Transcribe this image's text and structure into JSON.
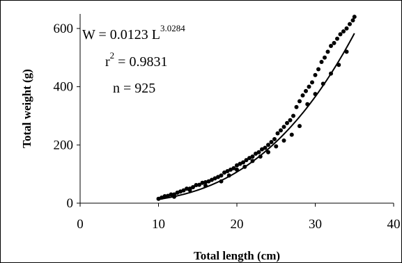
{
  "chart_data": {
    "type": "scatter",
    "xlabel": "Total length (cm)",
    "ylabel": "Total weight (g)",
    "xlim": [
      0,
      40
    ],
    "ylim": [
      0,
      650
    ],
    "xticks": [
      0,
      10,
      20,
      30,
      40
    ],
    "yticks": [
      0,
      200,
      400,
      600
    ],
    "grid": false,
    "annotation": {
      "equation_prefix": "W = 0.0123 L",
      "equation_exponent": "3.0284",
      "r2_prefix": "r",
      "r2_exponent": "2",
      "r2_suffix": " = 0.9831",
      "n_text": "n = 925"
    },
    "fit": {
      "a": 0.0123,
      "b": 3.0284,
      "x_range": [
        10,
        35
      ]
    },
    "series": [
      {
        "kind": "points",
        "x": [
          10.0,
          10.4,
          10.8,
          11.2,
          11.6,
          12.0,
          12.4,
          12.8,
          13.2,
          13.6,
          14.0,
          14.4,
          14.8,
          15.2,
          15.6,
          16.0,
          16.4,
          16.8,
          17.2,
          17.6,
          18.0,
          18.4,
          18.8,
          19.2,
          19.6,
          20.0,
          20.4,
          20.8,
          21.2,
          21.6,
          22.0,
          22.4,
          22.8,
          23.2,
          23.6,
          24.0,
          24.4,
          24.8,
          25.2,
          25.6,
          26.0,
          26.4,
          26.8,
          27.2,
          27.6,
          28.0,
          28.4,
          28.8,
          29.2,
          29.6,
          30.0,
          30.4,
          30.8,
          31.2,
          31.6,
          32.0,
          32.4,
          32.8,
          33.2,
          33.6,
          34.0,
          34.4,
          34.8,
          35.0,
          12.0,
          14.0,
          16.0,
          18.0,
          19.0,
          20.0,
          21.0,
          22.0,
          23.0,
          24.0,
          25.0,
          26.0,
          27.0,
          28.0,
          29.0,
          30.0,
          31.0,
          32.0,
          33.0,
          34.0
        ],
        "y": [
          15,
          19,
          24,
          25,
          30,
          30,
          36,
          40,
          44,
          50,
          50,
          55,
          62,
          63,
          70,
          72,
          75,
          80,
          85,
          90,
          95,
          105,
          110,
          115,
          120,
          130,
          135,
          140,
          148,
          155,
          160,
          170,
          175,
          185,
          190,
          200,
          210,
          220,
          240,
          250,
          262,
          275,
          285,
          300,
          330,
          350,
          370,
          385,
          400,
          415,
          440,
          460,
          485,
          500,
          520,
          540,
          550,
          565,
          580,
          590,
          600,
          615,
          628,
          640,
          22,
          45,
          60,
          75,
          95,
          115,
          125,
          145,
          160,
          175,
          195,
          215,
          235,
          265,
          340,
          375,
          410,
          445,
          475,
          520
        ]
      }
    ]
  }
}
